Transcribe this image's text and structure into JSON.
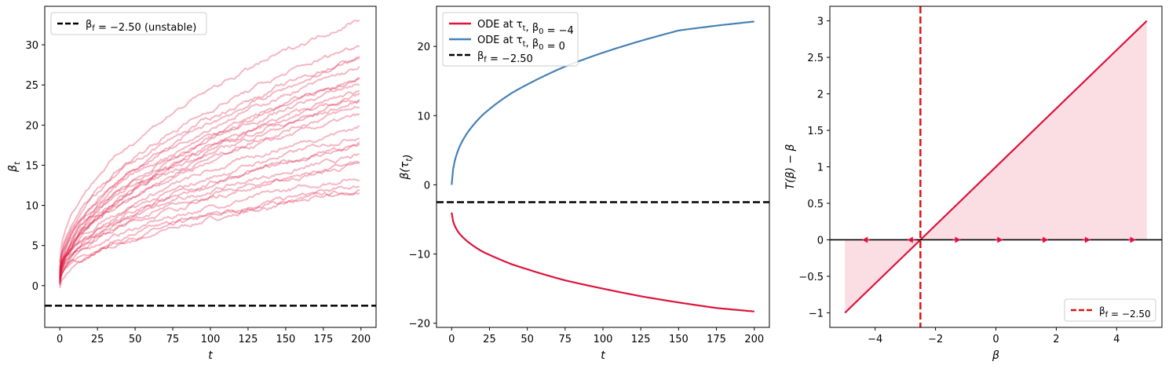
{
  "chart_data": [
    {
      "type": "line",
      "xlabel": "t",
      "ylabel": "β_t",
      "xlim": [
        -10,
        210
      ],
      "ylim": [
        -5.2,
        34.8
      ],
      "xticks": [
        0,
        25,
        50,
        75,
        100,
        125,
        150,
        175,
        200
      ],
      "yticks": [
        0,
        5,
        10,
        15,
        20,
        25,
        30
      ],
      "x_range": [
        0,
        199
      ],
      "line_color": "#dc143c",
      "sample_paths_y_at_t199": [
        11.7,
        12.0,
        12.4,
        13.5,
        15.0,
        15.3,
        16.1,
        17.4,
        17.6,
        18.7,
        19.8,
        21.2,
        22.3,
        22.9,
        23.3,
        23.8,
        24.3,
        25.2,
        25.9,
        25.7,
        27.1,
        28.2,
        28.5,
        30.1,
        33.2
      ],
      "sample_paths_y_at_t0": [
        -0.3,
        0.2,
        0.4,
        0.7,
        0.9,
        1.1,
        1.3,
        1.5,
        0.0,
        0.5,
        0.8,
        1.2,
        0.3,
        0.6,
        1.0,
        1.4,
        0.1,
        0.9,
        1.6,
        0.4,
        1.8,
        0.7,
        2.2,
        1.9,
        2.9
      ],
      "hlines": [
        {
          "y": -2.5,
          "color": "#000000",
          "style": "dashed",
          "label": "β_f = −2.50 (unstable)"
        }
      ],
      "legend_position": "upper left",
      "legend_entries": [
        {
          "label": "β_f = −2.50 (unstable)",
          "color": "#000000",
          "style": "dashed"
        }
      ]
    },
    {
      "type": "line",
      "xlabel": "t",
      "ylabel": "β(τ_t)",
      "xlim": [
        -10,
        210
      ],
      "ylim": [
        -20.6,
        25.8
      ],
      "xticks": [
        0,
        25,
        50,
        75,
        100,
        125,
        150,
        175,
        200
      ],
      "yticks": [
        -20,
        -10,
        0,
        10,
        20
      ],
      "series": [
        {
          "name": "ODE at τ_t, β_0 = −4",
          "color": "#dc143c",
          "x": [
            0,
            1,
            2,
            5,
            10,
            20,
            30,
            40,
            50,
            75,
            100,
            125,
            150,
            175,
            200
          ],
          "y": [
            -4.0,
            -5.3,
            -5.9,
            -7.0,
            -8.1,
            -9.6,
            -10.6,
            -11.5,
            -12.2,
            -13.8,
            -15.0,
            -16.1,
            -17.0,
            -17.8,
            -18.3
          ]
        },
        {
          "name": "ODE at τ_t, β_0 = 0",
          "color": "#4682b4",
          "x": [
            0,
            1,
            2,
            5,
            10,
            20,
            30,
            40,
            50,
            75,
            100,
            125,
            150,
            175,
            200
          ],
          "y": [
            0.0,
            2.3,
            3.4,
            5.4,
            7.4,
            10.0,
            11.8,
            13.3,
            14.5,
            17.1,
            19.1,
            20.8,
            22.3,
            23.0,
            23.6
          ]
        }
      ],
      "hlines": [
        {
          "y": -2.5,
          "color": "#000000",
          "style": "dashed",
          "label": "β_f = −2.50"
        }
      ],
      "legend_position": "upper left",
      "legend_entries": [
        {
          "label": "ODE at τ_t, β_0 = −4",
          "color": "#dc143c",
          "style": "solid"
        },
        {
          "label": "ODE at τ_t, β_0 = 0",
          "color": "#4682b4",
          "style": "solid"
        },
        {
          "label": "β_f = −2.50",
          "color": "#000000",
          "style": "dashed"
        }
      ]
    },
    {
      "type": "line",
      "xlabel": "β",
      "ylabel": "T(β) − β",
      "xlim": [
        -5.5,
        5.5
      ],
      "ylim": [
        -1.2,
        3.2
      ],
      "xticks": [
        -4,
        -2,
        0,
        2,
        4
      ],
      "yticks": [
        -1.0,
        -0.5,
        0.0,
        0.5,
        1.0,
        1.5,
        2.0,
        2.5,
        3.0
      ],
      "series": [
        {
          "color": "#dc143c",
          "x": [
            -5,
            5
          ],
          "y": [
            -1.0,
            3.0
          ]
        }
      ],
      "fill_between_line_and_zero": {
        "color": "#dc143c",
        "alpha": 0.14
      },
      "hlines": [
        {
          "y": 0,
          "color": "#000000",
          "style": "solid"
        }
      ],
      "vlines": [
        {
          "x": -2.5,
          "color": "#dd1111",
          "style": "dashed",
          "label": "β_f = −2.50"
        }
      ],
      "arrows": [
        {
          "x": -4.3,
          "direction": "left"
        },
        {
          "x": -2.8,
          "direction": "left"
        },
        {
          "x": -1.3,
          "direction": "right"
        },
        {
          "x": 0.1,
          "direction": "right"
        },
        {
          "x": 1.6,
          "direction": "right"
        },
        {
          "x": 3.0,
          "direction": "right"
        },
        {
          "x": 4.5,
          "direction": "right"
        }
      ],
      "arrow_color": "#dc143c",
      "legend_position": "lower right",
      "legend_entries": [
        {
          "label": "β_f = −2.50",
          "color": "#dd1111",
          "style": "dashed"
        }
      ]
    }
  ]
}
